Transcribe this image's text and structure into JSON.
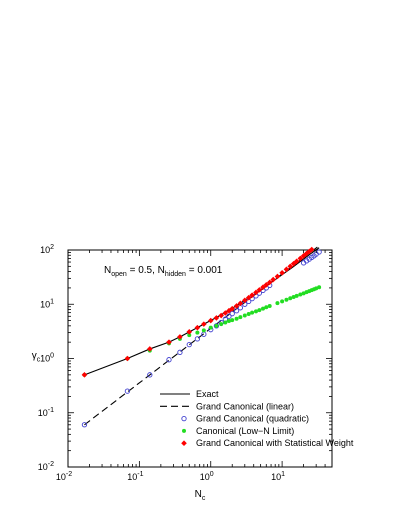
{
  "chart_data": {
    "type": "scatter",
    "x_scale": "log",
    "y_scale": "log",
    "xlim": [
      0.01,
      50
    ],
    "ylim": [
      0.01,
      100
    ],
    "grid": false,
    "xlabel": "N",
    "xlabel_sub": "c",
    "ylabel": "γ",
    "ylabel_sub": "c",
    "x_ticks": [
      {
        "value": 0.01,
        "base": "10",
        "exp": "-2"
      },
      {
        "value": 0.1,
        "base": "10",
        "exp": "-1"
      },
      {
        "value": 1,
        "base": "10",
        "exp": "0"
      },
      {
        "value": 10,
        "base": "10",
        "exp": "1"
      }
    ],
    "y_ticks": [
      {
        "value": 0.01,
        "base": "10",
        "exp": "-2"
      },
      {
        "value": 0.1,
        "base": "10",
        "exp": "-1"
      },
      {
        "value": 1,
        "base": "10",
        "exp": "0"
      },
      {
        "value": 10,
        "base": "10",
        "exp": "1"
      },
      {
        "value": 100,
        "base": "10",
        "exp": "2"
      }
    ],
    "annotation": {
      "parts": [
        {
          "text": "N",
          "sub": false
        },
        {
          "text": "open",
          "sub": true
        },
        {
          "text": " = 0.5, N",
          "sub": false
        },
        {
          "text": "hidden",
          "sub": true
        },
        {
          "text": " = 0.001",
          "sub": false
        }
      ]
    },
    "legend_position": "bottom-right",
    "series": [
      {
        "name": "Exact",
        "style": "solid-line",
        "color": "#000000",
        "x": [
          0.017,
          0.068,
          0.14,
          0.26,
          0.37,
          0.55,
          0.8,
          1.2,
          1.8,
          2.6,
          3.7,
          5.3,
          7.3,
          10,
          14,
          19,
          25,
          33
        ],
        "y": [
          0.5,
          1.0,
          1.5,
          2.0,
          2.5,
          3.3,
          4.3,
          5.7,
          7.7,
          10.5,
          14,
          19,
          26,
          35,
          48,
          65,
          85,
          110
        ]
      },
      {
        "name": "Grand Canonical (linear)",
        "style": "dashed-line",
        "color": "#000000",
        "x": [
          0.017,
          33
        ],
        "y": [
          0.06,
          120
        ]
      },
      {
        "name": "Grand Canonical (quadratic)",
        "style": "open-circle",
        "color": "#4040d0",
        "x": [
          0.017,
          0.068,
          0.14,
          0.26,
          0.37,
          0.5,
          0.65,
          0.8,
          1.0,
          1.2,
          1.4,
          1.6,
          1.8,
          2.0,
          2.3,
          2.6,
          3.0,
          3.4,
          3.8,
          4.3,
          4.8,
          5.4,
          6.0,
          6.7,
          20,
          22,
          24,
          26,
          28,
          30,
          33
        ],
        "y": [
          0.06,
          0.25,
          0.5,
          0.95,
          1.3,
          1.8,
          2.3,
          2.8,
          3.4,
          4.0,
          4.6,
          5.3,
          6.0,
          6.7,
          7.6,
          8.6,
          10,
          11.3,
          12.7,
          14.3,
          16,
          18,
          20,
          22.3,
          58,
          63,
          68,
          73,
          78,
          84,
          92
        ]
      },
      {
        "name": "Canonical (Low−N Limit)",
        "style": "filled-circle",
        "color": "#22dd22",
        "x": [
          0.017,
          0.068,
          0.14,
          0.26,
          0.37,
          0.5,
          0.65,
          0.8,
          1.0,
          1.2,
          1.4,
          1.6,
          1.8,
          2.0,
          2.3,
          2.6,
          3.0,
          3.4,
          3.8,
          4.3,
          4.8,
          5.4,
          6.0,
          6.7,
          8.6,
          10,
          11.5,
          13,
          14.5,
          16,
          18,
          20,
          22,
          24,
          26,
          28,
          30,
          33
        ],
        "y": [
          0.5,
          1.0,
          1.4,
          1.9,
          2.3,
          2.7,
          3.0,
          3.3,
          3.7,
          4.0,
          4.3,
          4.6,
          4.9,
          5.1,
          5.4,
          5.8,
          6.2,
          6.6,
          7.0,
          7.4,
          7.8,
          8.3,
          8.8,
          9.3,
          10.5,
          11.3,
          12.1,
          12.9,
          13.6,
          14.3,
          15.1,
          15.9,
          16.7,
          17.5,
          18.2,
          18.9,
          19.6,
          20.6
        ]
      },
      {
        "name": "Grand Canonical with Statistical Weight",
        "style": "filled-diamond",
        "color": "#ff0000",
        "x": [
          0.017,
          0.068,
          0.14,
          0.26,
          0.37,
          0.5,
          0.65,
          0.8,
          1.0,
          1.2,
          1.4,
          1.6,
          1.8,
          2.0,
          2.3,
          2.6,
          3.0,
          3.4,
          3.8,
          4.3,
          4.8,
          5.4,
          6.0,
          6.7,
          7.5,
          8.6,
          10,
          11.5,
          13,
          14.5,
          16,
          18,
          20,
          22,
          24,
          26,
          28,
          30,
          33
        ],
        "y": [
          0.5,
          1.0,
          1.5,
          2.0,
          2.5,
          3.1,
          3.7,
          4.3,
          5.0,
          5.6,
          6.2,
          6.9,
          7.6,
          8.3,
          9.3,
          10.4,
          11.8,
          13.2,
          14.7,
          16.5,
          18.4,
          20.6,
          22.8,
          25.3,
          28.5,
          32.5,
          38,
          44,
          50,
          56,
          62,
          70,
          78,
          86,
          94,
          102,
          110,
          118,
          130
        ]
      }
    ]
  }
}
